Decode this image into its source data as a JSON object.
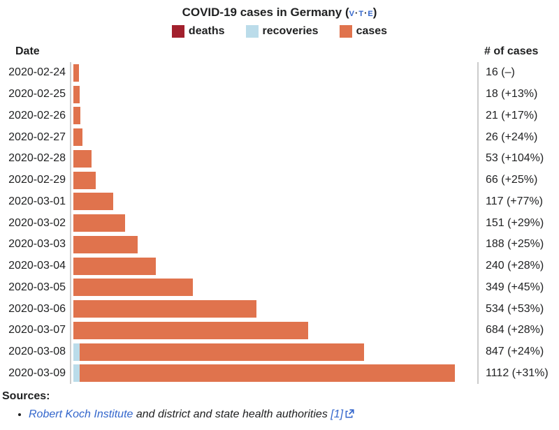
{
  "header": {
    "title": "COVID-19 cases in Germany",
    "paren_open": "(",
    "paren_close": ")",
    "navbar": {
      "v": "v",
      "t": "t",
      "e": "e",
      "separator": "·"
    }
  },
  "colors": {
    "deaths": "#A2202D",
    "recoveries": "#BBDCEA",
    "cases": "#E0734D",
    "axis": "#CCCCCC",
    "link": "#3366CC"
  },
  "chart_data": {
    "type": "bar",
    "orientation": "horizontal",
    "title": "COVID-19 cases in Germany",
    "legend_position": "top",
    "date_header": "Date",
    "cases_header": "# of cases",
    "max_value": 1112,
    "legend": [
      {
        "label": "deaths",
        "color": "#A2202D"
      },
      {
        "label": "recoveries",
        "color": "#BBDCEA"
      },
      {
        "label": "cases",
        "color": "#E0734D"
      }
    ],
    "rows": [
      {
        "date": "2020-02-24",
        "total": 16,
        "recoveries": 0,
        "label": "16 (–)"
      },
      {
        "date": "2020-02-25",
        "total": 18,
        "recoveries": 0,
        "label": "18 (+13%)"
      },
      {
        "date": "2020-02-26",
        "total": 21,
        "recoveries": 0,
        "label": "21 (+17%)"
      },
      {
        "date": "2020-02-27",
        "total": 26,
        "recoveries": 0,
        "label": "26 (+24%)"
      },
      {
        "date": "2020-02-28",
        "total": 53,
        "recoveries": 0,
        "label": "53 (+104%)"
      },
      {
        "date": "2020-02-29",
        "total": 66,
        "recoveries": 0,
        "label": "66 (+25%)"
      },
      {
        "date": "2020-03-01",
        "total": 117,
        "recoveries": 0,
        "label": "117 (+77%)"
      },
      {
        "date": "2020-03-02",
        "total": 151,
        "recoveries": 0,
        "label": "151 (+29%)"
      },
      {
        "date": "2020-03-03",
        "total": 188,
        "recoveries": 0,
        "label": "188 (+25%)"
      },
      {
        "date": "2020-03-04",
        "total": 240,
        "recoveries": 0,
        "label": "240 (+28%)"
      },
      {
        "date": "2020-03-05",
        "total": 349,
        "recoveries": 0,
        "label": "349 (+45%)"
      },
      {
        "date": "2020-03-06",
        "total": 534,
        "recoveries": 0,
        "label": "534 (+53%)"
      },
      {
        "date": "2020-03-07",
        "total": 684,
        "recoveries": 0,
        "label": "684 (+28%)"
      },
      {
        "date": "2020-03-08",
        "total": 847,
        "recoveries": 18,
        "label": "847 (+24%)"
      },
      {
        "date": "2020-03-09",
        "total": 1112,
        "recoveries": 18,
        "label": "1112 (+31%)"
      }
    ]
  },
  "sources": {
    "title": "Sources:",
    "link_text": "Robert Koch Institute",
    "rest_text": " and district and state health authorities ",
    "ref_label": "[1]"
  }
}
